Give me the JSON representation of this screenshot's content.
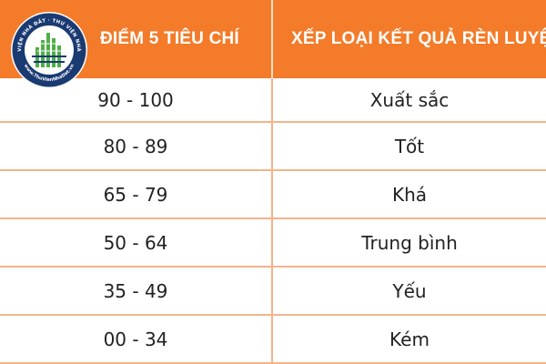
{
  "header": {
    "col_score": "ĐIỂM 5 TIÊU CHÍ",
    "col_rating": "XẾP LOẠI KẾT QUẢ RÈN LUYỆN"
  },
  "rows": [
    {
      "range": "90 - 100",
      "rating": "Xuất sắc"
    },
    {
      "range": "80 - 89",
      "rating": "Tốt"
    },
    {
      "range": "65 - 79",
      "rating": "Khá"
    },
    {
      "range": "50 - 64",
      "rating": "Trung bình"
    },
    {
      "range": "35 - 49",
      "rating": "Yếu"
    },
    {
      "range": "00 - 34",
      "rating": "Kém"
    }
  ],
  "logo": {
    "top_text": "THƯ VIỆN NHÀ ĐẤT · THƯ VIỆN NHÀ ĐẤT",
    "bottom_text": "www.ThuVienNhaDat.vn",
    "icon": "building-logo-icon"
  },
  "colors": {
    "header_bg": "#f37b29",
    "row_line": "#f4b48a",
    "logo_navy": "#1a3a72",
    "logo_green": "#4fae48"
  }
}
